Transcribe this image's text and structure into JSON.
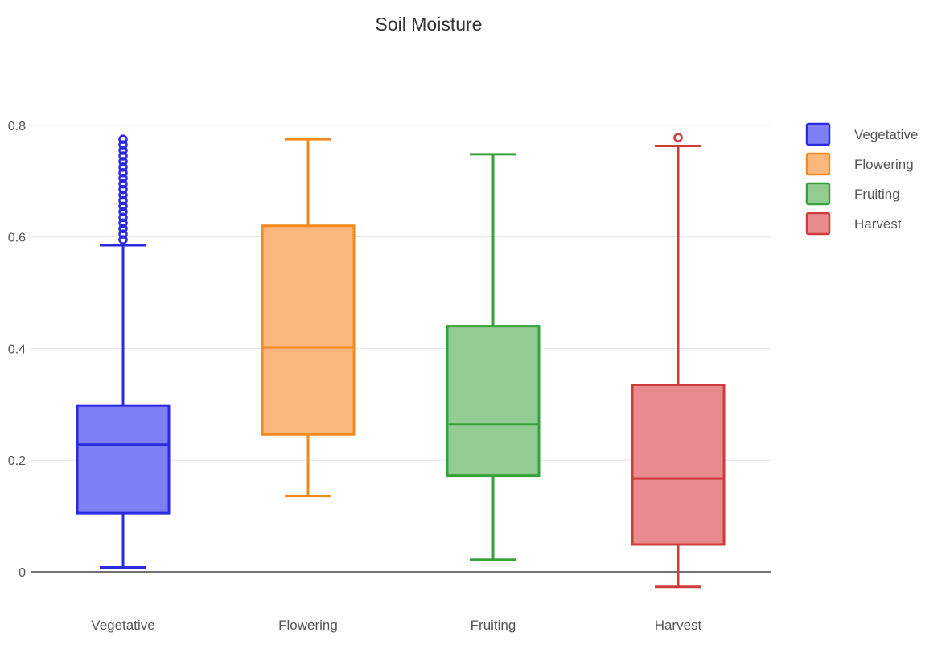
{
  "chart_data": {
    "type": "box",
    "title": "Soil Moisture",
    "xlabel": "",
    "ylabel": "",
    "ylim": [
      -0.045,
      0.82
    ],
    "yticks": [
      0,
      0.2,
      0.4,
      0.6,
      0.8
    ],
    "ytick_labels": [
      "0",
      "0.2",
      "0.4",
      "0.6",
      "0.8"
    ],
    "grid": true,
    "legend": {
      "position": "right"
    },
    "categories": [
      "Vegetative",
      "Flowering",
      "Fruiting",
      "Harvest"
    ],
    "series": [
      {
        "name": "Vegetative",
        "color": "#2a2ae0",
        "fill": "#7f7ff5",
        "min": 0.008,
        "q1": 0.105,
        "median": 0.228,
        "q3": 0.298,
        "max": 0.585,
        "outliers": [
          0.595,
          0.605,
          0.615,
          0.625,
          0.635,
          0.645,
          0.655,
          0.665,
          0.675,
          0.685,
          0.695,
          0.705,
          0.715,
          0.725,
          0.735,
          0.745,
          0.755,
          0.765,
          0.775
        ]
      },
      {
        "name": "Flowering",
        "color": "#f28a1e",
        "fill": "#fbb77e",
        "min": 0.136,
        "q1": 0.246,
        "median": 0.402,
        "q3": 0.62,
        "max": 0.775,
        "outliers": []
      },
      {
        "name": "Fruiting",
        "color": "#36a23a",
        "fill": "#93cc92",
        "min": 0.022,
        "q1": 0.172,
        "median": 0.264,
        "q3": 0.44,
        "max": 0.748,
        "outliers": []
      },
      {
        "name": "Harvest",
        "color": "#cf3a3a",
        "fill": "#e88b8f",
        "min": -0.027,
        "q1": 0.049,
        "median": 0.167,
        "q3": 0.335,
        "max": 0.763,
        "outliers": [
          0.778
        ]
      }
    ]
  }
}
